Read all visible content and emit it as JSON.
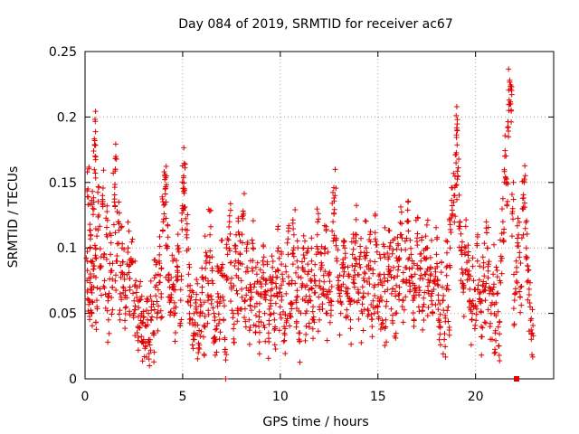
{
  "chart_data": {
    "type": "scatter",
    "title": "Day 084 of 2019, SRMTID for receiver ac67",
    "xlabel": "GPS time / hours",
    "ylabel": "SRMTID / TECUs",
    "xlim": [
      0,
      24
    ],
    "ylim": [
      0,
      0.25
    ],
    "xticks": [
      0,
      5,
      10,
      15,
      20
    ],
    "xtick_labels": [
      "0",
      "5",
      "10",
      "15",
      "20"
    ],
    "yticks": [
      0,
      0.05,
      0.1,
      0.15,
      0.2,
      0.25
    ],
    "ytick_labels": [
      "0",
      "0.05",
      "0.1",
      "0.15",
      "0.2",
      "0.25"
    ],
    "grid": true,
    "marker": "+",
    "color": "#e00000",
    "series": [
      {
        "name": "SRMTID",
        "points": [
          [
            0.1,
            0.075
          ],
          [
            0.15,
            0.145
          ],
          [
            0.2,
            0.06
          ],
          [
            0.25,
            0.118
          ],
          [
            0.3,
            0.09
          ],
          [
            0.35,
            0.05
          ],
          [
            0.4,
            0.13
          ],
          [
            0.45,
            0.07
          ],
          [
            0.5,
            0.182
          ],
          [
            0.52,
            0.17
          ],
          [
            0.55,
            0.1
          ],
          [
            0.6,
            0.06
          ],
          [
            0.7,
            0.125
          ],
          [
            0.8,
            0.085
          ],
          [
            0.9,
            0.14
          ],
          [
            1.0,
            0.075
          ],
          [
            1.1,
            0.11
          ],
          [
            1.2,
            0.045
          ],
          [
            1.3,
            0.095
          ],
          [
            1.4,
            0.07
          ],
          [
            1.5,
            0.135
          ],
          [
            1.55,
            0.16
          ],
          [
            1.6,
            0.09
          ],
          [
            1.7,
            0.12
          ],
          [
            1.8,
            0.065
          ],
          [
            1.9,
            0.1
          ],
          [
            2.0,
            0.08
          ],
          [
            2.1,
            0.055
          ],
          [
            2.2,
            0.1
          ],
          [
            2.3,
            0.07
          ],
          [
            2.4,
            0.09
          ],
          [
            2.5,
            0.05
          ],
          [
            2.6,
            0.075
          ],
          [
            2.7,
            0.04
          ],
          [
            2.8,
            0.06
          ],
          [
            2.9,
            0.05
          ],
          [
            3.0,
            0.03
          ],
          [
            3.1,
            0.025
          ],
          [
            3.2,
            0.045
          ],
          [
            3.3,
            0.01
          ],
          [
            3.4,
            0.055
          ],
          [
            3.5,
            0.035
          ],
          [
            3.6,
            0.07
          ],
          [
            3.7,
            0.05
          ],
          [
            3.8,
            0.09
          ],
          [
            3.9,
            0.065
          ],
          [
            4.0,
            0.12
          ],
          [
            4.1,
            0.145
          ],
          [
            4.15,
            0.135
          ],
          [
            4.2,
            0.1
          ],
          [
            4.3,
            0.08
          ],
          [
            4.4,
            0.06
          ],
          [
            4.5,
            0.09
          ],
          [
            4.6,
            0.05
          ],
          [
            4.7,
            0.075
          ],
          [
            4.8,
            0.1
          ],
          [
            4.9,
            0.06
          ],
          [
            5.0,
            0.13
          ],
          [
            5.05,
            0.155
          ],
          [
            5.1,
            0.145
          ],
          [
            5.2,
            0.11
          ],
          [
            5.3,
            0.08
          ],
          [
            5.4,
            0.06
          ],
          [
            5.5,
            0.045
          ],
          [
            5.6,
            0.03
          ],
          [
            5.7,
            0.055
          ],
          [
            5.8,
            0.02
          ],
          [
            5.9,
            0.05
          ],
          [
            6.0,
            0.07
          ],
          [
            6.1,
            0.04
          ],
          [
            6.2,
            0.09
          ],
          [
            6.3,
            0.06
          ],
          [
            6.4,
            0.11
          ],
          [
            6.5,
            0.075
          ],
          [
            6.6,
            0.05
          ],
          [
            6.7,
            0.03
          ],
          [
            6.8,
            0.065
          ],
          [
            6.9,
            0.045
          ],
          [
            7.0,
            0.085
          ],
          [
            7.1,
            0.06
          ],
          [
            7.2,
            0.0
          ],
          [
            7.3,
            0.095
          ],
          [
            7.4,
            0.12
          ],
          [
            7.5,
            0.07
          ],
          [
            7.6,
            0.05
          ],
          [
            7.7,
            0.09
          ],
          [
            7.8,
            0.065
          ],
          [
            7.9,
            0.11
          ],
          [
            8.0,
            0.075
          ],
          [
            8.1,
            0.125
          ],
          [
            8.2,
            0.06
          ],
          [
            8.3,
            0.085
          ],
          [
            8.4,
            0.045
          ],
          [
            8.5,
            0.07
          ],
          [
            8.6,
            0.1
          ],
          [
            8.7,
            0.055
          ],
          [
            8.8,
            0.08
          ],
          [
            8.9,
            0.04
          ],
          [
            9.0,
            0.065
          ],
          [
            9.1,
            0.09
          ],
          [
            9.2,
            0.05
          ],
          [
            9.3,
            0.075
          ],
          [
            9.4,
            0.035
          ],
          [
            9.5,
            0.06
          ],
          [
            9.6,
            0.085
          ],
          [
            9.7,
            0.045
          ],
          [
            9.8,
            0.07
          ],
          [
            9.9,
            0.1
          ],
          [
            10.0,
            0.055
          ],
          [
            10.1,
            0.08
          ],
          [
            10.2,
            0.04
          ],
          [
            10.3,
            0.065
          ],
          [
            10.4,
            0.095
          ],
          [
            10.5,
            0.05
          ],
          [
            10.6,
            0.075
          ],
          [
            10.7,
            0.11
          ],
          [
            10.8,
            0.06
          ],
          [
            10.9,
            0.085
          ],
          [
            11.0,
            0.035
          ],
          [
            11.1,
            0.07
          ],
          [
            11.2,
            0.1
          ],
          [
            11.3,
            0.05
          ],
          [
            11.4,
            0.08
          ],
          [
            11.5,
            0.06
          ],
          [
            11.6,
            0.09
          ],
          [
            11.7,
            0.045
          ],
          [
            11.8,
            0.075
          ],
          [
            11.9,
            0.11
          ],
          [
            12.0,
            0.055
          ],
          [
            12.1,
            0.085
          ],
          [
            12.2,
            0.065
          ],
          [
            12.3,
            0.1
          ],
          [
            12.4,
            0.05
          ],
          [
            12.5,
            0.08
          ],
          [
            12.6,
            0.06
          ],
          [
            12.7,
            0.12
          ],
          [
            12.8,
            0.14
          ],
          [
            12.9,
            0.09
          ],
          [
            13.0,
            0.07
          ],
          [
            13.1,
            0.05
          ],
          [
            13.2,
            0.085
          ],
          [
            13.3,
            0.1
          ],
          [
            13.4,
            0.065
          ],
          [
            13.5,
            0.08
          ],
          [
            13.6,
            0.045
          ],
          [
            13.7,
            0.095
          ],
          [
            13.8,
            0.07
          ],
          [
            13.9,
            0.11
          ],
          [
            14.0,
            0.06
          ],
          [
            14.1,
            0.085
          ],
          [
            14.2,
            0.05
          ],
          [
            14.3,
            0.075
          ],
          [
            14.4,
            0.1
          ],
          [
            14.5,
            0.065
          ],
          [
            14.6,
            0.09
          ],
          [
            14.7,
            0.04
          ],
          [
            14.8,
            0.07
          ],
          [
            14.9,
            0.105
          ],
          [
            15.0,
            0.055
          ],
          [
            15.1,
            0.08
          ],
          [
            15.2,
            0.06
          ],
          [
            15.3,
            0.095
          ],
          [
            15.4,
            0.045
          ],
          [
            15.5,
            0.075
          ],
          [
            15.6,
            0.1
          ],
          [
            15.7,
            0.065
          ],
          [
            15.8,
            0.085
          ],
          [
            15.9,
            0.05
          ],
          [
            16.0,
            0.09
          ],
          [
            16.1,
            0.07
          ],
          [
            16.2,
            0.11
          ],
          [
            16.3,
            0.06
          ],
          [
            16.4,
            0.085
          ],
          [
            16.5,
            0.12
          ],
          [
            16.6,
            0.075
          ],
          [
            16.7,
            0.095
          ],
          [
            16.8,
            0.06
          ],
          [
            16.9,
            0.08
          ],
          [
            17.0,
            0.105
          ],
          [
            17.1,
            0.07
          ],
          [
            17.2,
            0.09
          ],
          [
            17.3,
            0.055
          ],
          [
            17.4,
            0.08
          ],
          [
            17.5,
            0.1
          ],
          [
            17.6,
            0.065
          ],
          [
            17.7,
            0.085
          ],
          [
            17.8,
            0.05
          ],
          [
            17.9,
            0.075
          ],
          [
            18.0,
            0.095
          ],
          [
            18.1,
            0.06
          ],
          [
            18.2,
            0.04
          ],
          [
            18.3,
            0.07
          ],
          [
            18.4,
            0.03
          ],
          [
            18.5,
            0.085
          ],
          [
            18.6,
            0.055
          ],
          [
            18.7,
            0.1
          ],
          [
            18.8,
            0.125
          ],
          [
            18.9,
            0.14
          ],
          [
            19.0,
            0.165
          ],
          [
            19.05,
            0.19
          ],
          [
            19.1,
            0.155
          ],
          [
            19.2,
            0.12
          ],
          [
            19.3,
            0.095
          ],
          [
            19.4,
            0.07
          ],
          [
            19.5,
            0.1
          ],
          [
            19.6,
            0.08
          ],
          [
            19.7,
            0.06
          ],
          [
            19.8,
            0.045
          ],
          [
            19.9,
            0.075
          ],
          [
            20.0,
            0.055
          ],
          [
            20.1,
            0.09
          ],
          [
            20.2,
            0.065
          ],
          [
            20.3,
            0.04
          ],
          [
            20.4,
            0.085
          ],
          [
            20.5,
            0.06
          ],
          [
            20.6,
            0.1
          ],
          [
            20.7,
            0.07
          ],
          [
            20.8,
            0.05
          ],
          [
            20.9,
            0.08
          ],
          [
            21.0,
            0.035
          ],
          [
            21.1,
            0.065
          ],
          [
            21.2,
            0.025
          ],
          [
            21.3,
            0.09
          ],
          [
            21.4,
            0.12
          ],
          [
            21.5,
            0.17
          ],
          [
            21.6,
            0.15
          ],
          [
            21.7,
            0.205
          ],
          [
            21.75,
            0.228
          ],
          [
            21.8,
            0.21
          ],
          [
            21.9,
            0.13
          ],
          [
            22.0,
            0.06
          ],
          [
            22.1,
            0.085
          ],
          [
            22.2,
            0.11
          ],
          [
            22.3,
            0.07
          ],
          [
            22.4,
            0.13
          ],
          [
            22.5,
            0.15
          ],
          [
            22.6,
            0.1
          ],
          [
            22.7,
            0.075
          ],
          [
            22.8,
            0.055
          ],
          [
            22.9,
            0.035
          ]
        ]
      }
    ],
    "legend_marker_outlier": [
      22.1,
      0.0
    ]
  }
}
